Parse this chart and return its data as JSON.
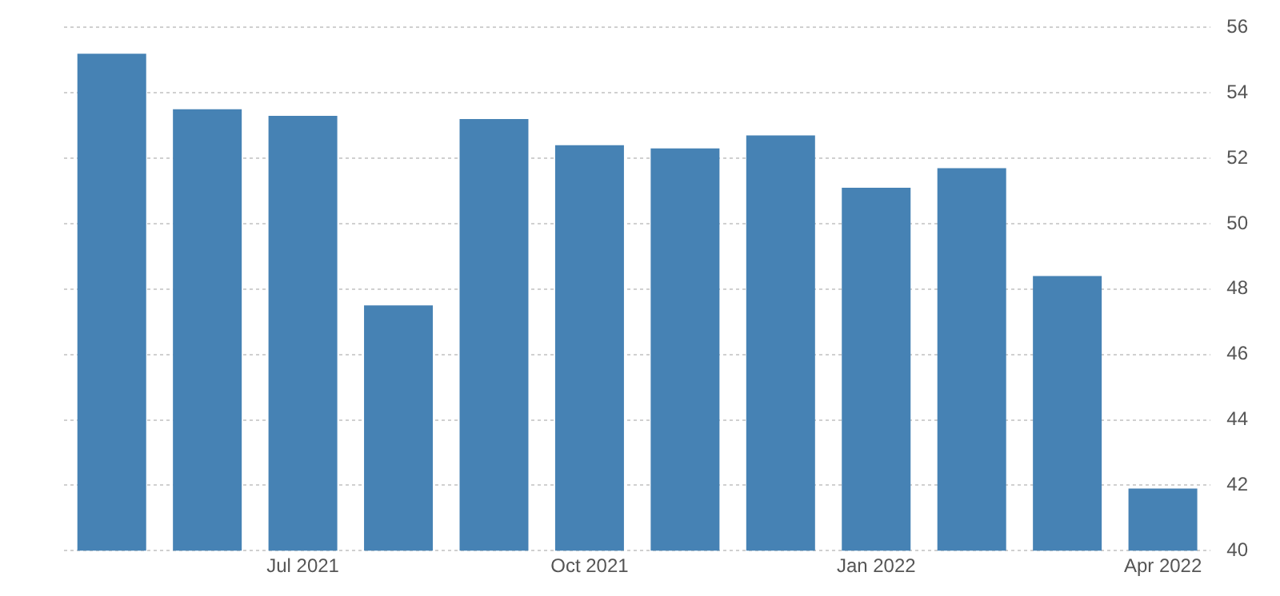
{
  "chart_data": {
    "type": "bar",
    "categories": [
      null,
      null,
      "Jul 2021",
      null,
      null,
      "Oct 2021",
      null,
      null,
      "Jan 2022",
      null,
      null,
      "Apr 2022"
    ],
    "values": [
      55.2,
      53.5,
      53.3,
      47.5,
      53.2,
      52.4,
      52.3,
      52.7,
      51.1,
      51.7,
      48.4,
      41.9
    ],
    "color": "#4682b4",
    "ylim": [
      40,
      56
    ],
    "yticks": [
      40,
      42,
      44,
      46,
      48,
      50,
      52,
      54,
      56
    ],
    "grid": "y"
  }
}
